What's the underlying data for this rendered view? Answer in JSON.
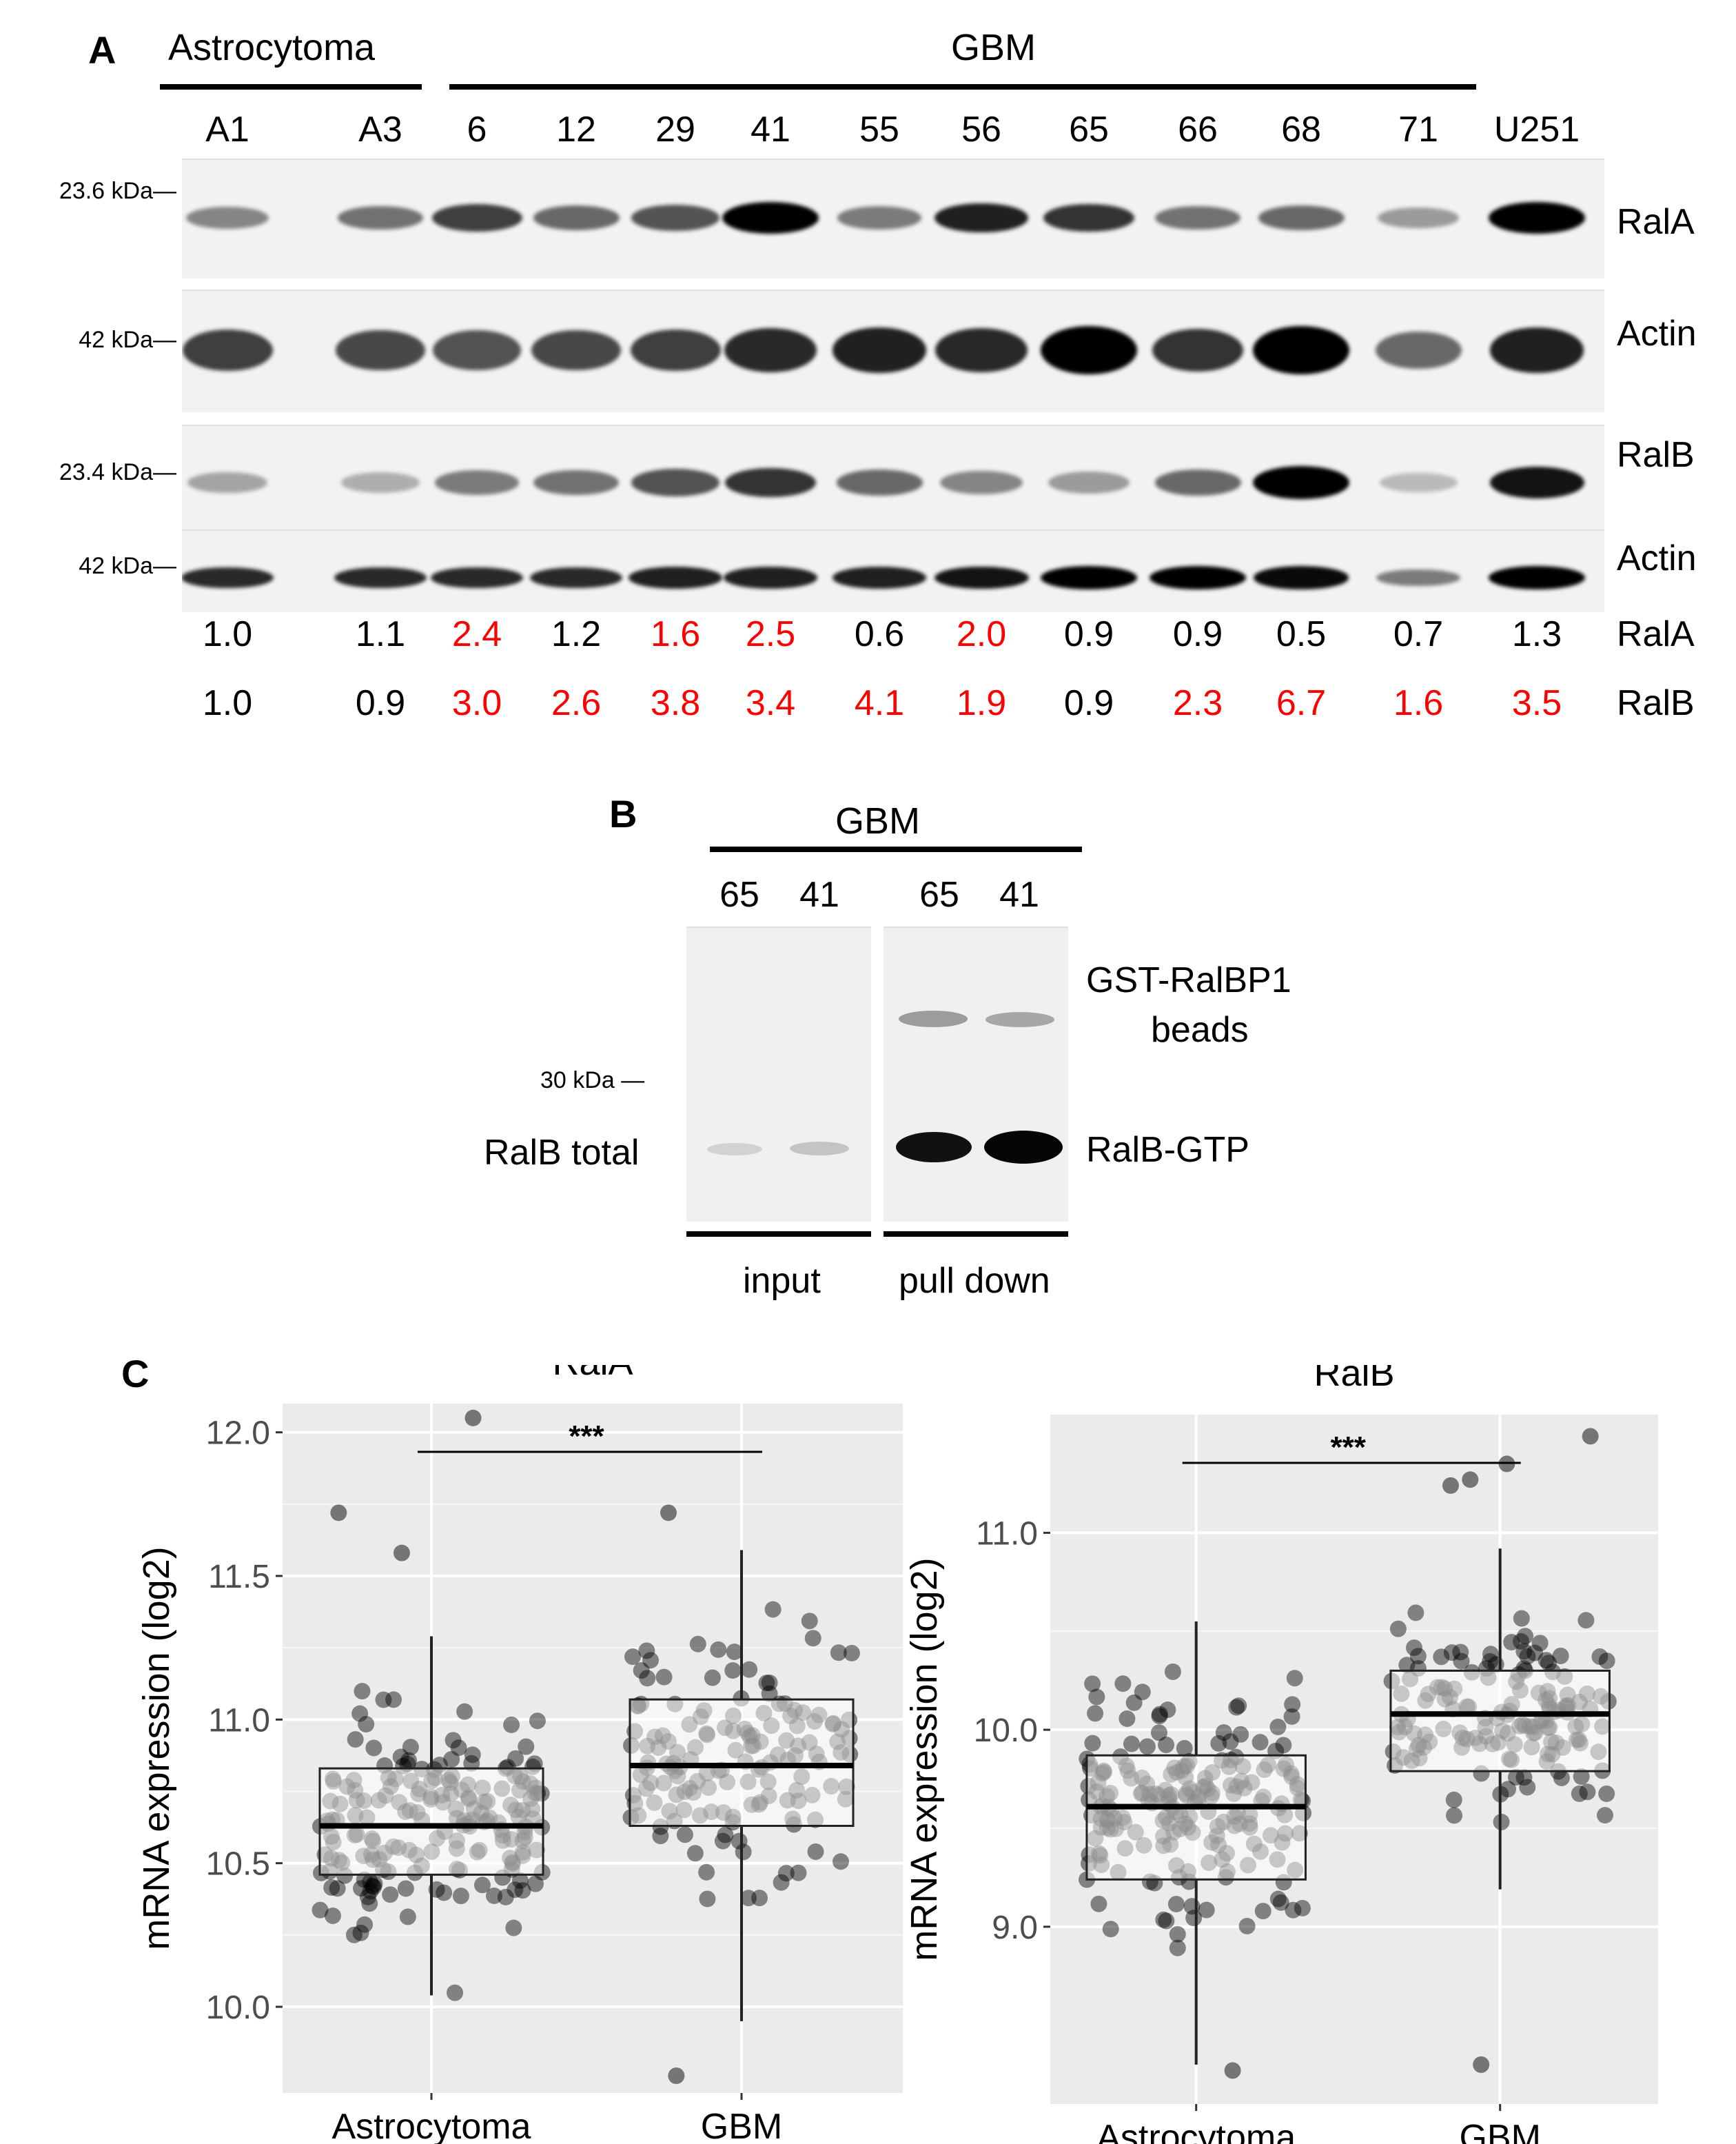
{
  "panels": {
    "a": "A",
    "b": "B",
    "c": "C"
  },
  "panel_a": {
    "group1_label": "Astrocytoma",
    "group2_label": "GBM",
    "lanes": [
      "A1",
      "A3",
      "6",
      "12",
      "29",
      "41",
      "55",
      "56",
      "65",
      "66",
      "68",
      "71",
      "U251"
    ],
    "blots": [
      {
        "marker": "23.6 kDa—",
        "label": "RalA",
        "intensity": [
          0.35,
          0.45,
          0.7,
          0.5,
          0.6,
          1.0,
          0.4,
          0.85,
          0.75,
          0.45,
          0.5,
          0.25,
          1.0
        ]
      },
      {
        "marker": "42 kDa—",
        "label": "Actin",
        "intensity": [
          0.7,
          0.65,
          0.6,
          0.65,
          0.7,
          0.8,
          0.85,
          0.8,
          1.0,
          0.75,
          1.0,
          0.5,
          0.85
        ]
      },
      {
        "marker": "23.4 kDa—",
        "label": "RalB",
        "intensity": [
          0.2,
          0.15,
          0.4,
          0.45,
          0.6,
          0.75,
          0.5,
          0.35,
          0.25,
          0.5,
          1.0,
          0.1,
          0.9
        ]
      },
      {
        "marker": "42 kDa—",
        "label": "Actin",
        "intensity": [
          0.8,
          0.8,
          0.8,
          0.8,
          0.85,
          0.85,
          0.85,
          0.9,
          1.0,
          1.0,
          0.95,
          0.4,
          1.0
        ]
      }
    ],
    "quant_rows": [
      {
        "label": "RalA",
        "values": [
          "1.0",
          "1.1",
          "2.4",
          "1.2",
          "1.6",
          "2.5",
          "0.6",
          "2.0",
          "0.9",
          "0.9",
          "0.5",
          "0.7",
          "1.3"
        ],
        "red": [
          false,
          false,
          true,
          false,
          true,
          true,
          false,
          true,
          false,
          false,
          false,
          false,
          false
        ]
      },
      {
        "label": "RalB",
        "values": [
          "1.0",
          "0.9",
          "3.0",
          "2.6",
          "3.8",
          "3.4",
          "4.1",
          "1.9",
          "0.9",
          "2.3",
          "6.7",
          "1.6",
          "3.5"
        ],
        "red": [
          false,
          false,
          true,
          true,
          true,
          true,
          true,
          true,
          false,
          true,
          true,
          true,
          true
        ]
      }
    ],
    "highlight_color": "#ff0000"
  },
  "panel_b": {
    "group_label": "GBM",
    "lanes": [
      "65",
      "41",
      "65",
      "41"
    ],
    "marker": "30 kDa —",
    "left_label": "RalB total",
    "right_label_top_1": "GST-RalBP1",
    "right_label_top_2": "beads",
    "right_label_bottom": "RalB-GTP",
    "bottom_left": "input",
    "bottom_right": "pull down"
  },
  "chart_data": [
    {
      "type": "boxplot",
      "title": "RalA",
      "ylabel": "mRNA expression (log2)",
      "categories": [
        "Astrocytoma",
        "GBM"
      ],
      "ylim": [
        9.7,
        12.1
      ],
      "yticks": [
        "10.0",
        "10.5",
        "11.0",
        "11.5",
        "12.0"
      ],
      "significance": "***",
      "boxes": [
        {
          "name": "Astrocytoma",
          "whisker_low": 10.04,
          "q1": 10.46,
          "median": 10.63,
          "q3": 10.83,
          "whisker_high": 11.29,
          "n": 190,
          "outliers": [
            12.05,
            11.72,
            11.58
          ]
        },
        {
          "name": "GBM",
          "whisker_low": 9.95,
          "q1": 10.63,
          "median": 10.84,
          "q3": 11.07,
          "whisker_high": 11.59,
          "n": 150,
          "outliers": [
            11.72,
            9.76
          ]
        }
      ]
    },
    {
      "type": "boxplot",
      "title": "RalB",
      "ylabel": "mRNA expression (log2)",
      "categories": [
        "Astrocytoma",
        "GBM"
      ],
      "ylim": [
        8.1,
        11.6
      ],
      "yticks": [
        "9.0",
        "10.0",
        "11.0"
      ],
      "significance": "***",
      "boxes": [
        {
          "name": "Astrocytoma",
          "whisker_low": 8.3,
          "q1": 9.24,
          "median": 9.61,
          "q3": 9.87,
          "whisker_high": 10.55,
          "n": 200,
          "outliers": [
            8.27
          ]
        },
        {
          "name": "GBM",
          "whisker_low": 9.19,
          "q1": 9.79,
          "median": 10.08,
          "q3": 10.3,
          "whisker_high": 10.92,
          "n": 150,
          "outliers": [
            11.49,
            11.35,
            11.27,
            11.24,
            8.3
          ]
        }
      ]
    }
  ]
}
